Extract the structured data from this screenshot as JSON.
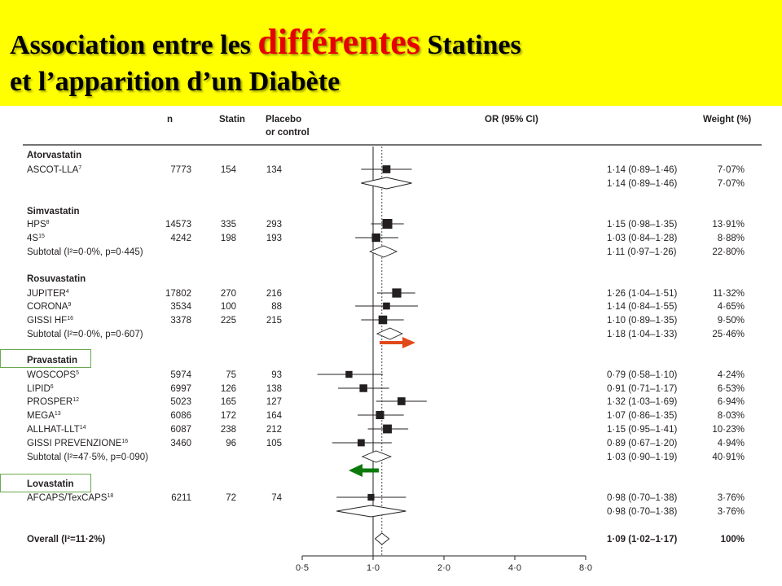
{
  "title": {
    "line1_pre": "Association entre les ",
    "line1_emph": "différentes",
    "line1_post": " Statines",
    "line2": "et l’apparition d’un Diabète"
  },
  "colors": {
    "title_background": "#ffff00",
    "title_emphasis": "#e60000",
    "right_arrow": "#e04a1a",
    "left_arrow": "#0b7a0b",
    "callout_box": "#6aa84f"
  },
  "chart_data": {
    "type": "forest",
    "x_scale": "log",
    "xlim": [
      0.5,
      8.0
    ],
    "x_ticks": [
      {
        "value": 0.5,
        "label": "0·5"
      },
      {
        "value": 1.0,
        "label": "1·0"
      },
      {
        "value": 2.0,
        "label": "2·0"
      },
      {
        "value": 4.0,
        "label": "4·0"
      },
      {
        "value": 8.0,
        "label": "8·0"
      }
    ],
    "reference_line": 1.0,
    "overall_line": 1.09,
    "headers": {
      "n": "n",
      "statin": "Statin",
      "placebo_1": "Placebo",
      "placebo_2": "or control",
      "or": "OR (95% CI)",
      "weight": "Weight (%)"
    },
    "groups": [
      {
        "name": "Atorvastatin",
        "studies": [
          {
            "label": "ASCOT-LLA",
            "ref": "7",
            "n": "7773",
            "statin": "154",
            "placebo": "134",
            "or": 1.14,
            "lo": 0.89,
            "hi": 1.46,
            "or_text": "1·14 (0·89–1·46)",
            "weight": 7.07,
            "weight_text": "7·07%"
          }
        ],
        "subtotal": {
          "label": "",
          "or": 1.14,
          "lo": 0.89,
          "hi": 1.46,
          "or_text": "1·14 (0·89–1·46)",
          "weight_text": "7·07%"
        }
      },
      {
        "name": "Simvastatin",
        "studies": [
          {
            "label": "HPS",
            "ref": "8",
            "n": "14573",
            "statin": "335",
            "placebo": "293",
            "or": 1.15,
            "lo": 0.98,
            "hi": 1.35,
            "or_text": "1·15 (0·98–1·35)",
            "weight": 13.91,
            "weight_text": "13·91%"
          },
          {
            "label": "4S",
            "ref": "15",
            "n": "4242",
            "statin": "198",
            "placebo": "193",
            "or": 1.03,
            "lo": 0.84,
            "hi": 1.28,
            "or_text": "1·03 (0·84–1·28)",
            "weight": 8.88,
            "weight_text": "8·88%"
          }
        ],
        "subtotal": {
          "label": "Subtotal (I²=0·0%, p=0·445)",
          "or": 1.11,
          "lo": 0.97,
          "hi": 1.26,
          "or_text": "1·11 (0·97–1·26)",
          "weight_text": "22·80%"
        }
      },
      {
        "name": "Rosuvastatin",
        "studies": [
          {
            "label": "JUPITER",
            "ref": "4",
            "n": "17802",
            "statin": "270",
            "placebo": "216",
            "or": 1.26,
            "lo": 1.04,
            "hi": 1.51,
            "or_text": "1·26 (1·04–1·51)",
            "weight": 11.32,
            "weight_text": "11·32%"
          },
          {
            "label": "CORONA",
            "ref": "9",
            "n": "3534",
            "statin": "100",
            "placebo": "88",
            "or": 1.14,
            "lo": 0.84,
            "hi": 1.55,
            "or_text": "1·14 (0·84–1·55)",
            "weight": 4.65,
            "weight_text": "4·65%"
          },
          {
            "label": "GISSI HF",
            "ref": "16",
            "n": "3378",
            "statin": "225",
            "placebo": "215",
            "or": 1.1,
            "lo": 0.89,
            "hi": 1.35,
            "or_text": "1·10 (0·89–1·35)",
            "weight": 9.5,
            "weight_text": "9·50%"
          }
        ],
        "subtotal": {
          "label": "Subtotal (I²=0·0%, p=0·607)",
          "or": 1.18,
          "lo": 1.04,
          "hi": 1.33,
          "or_text": "1·18 (1·04–1·33)",
          "weight_text": "25·46%"
        }
      },
      {
        "name": "Pravastatin",
        "studies": [
          {
            "label": "WOSCOPS",
            "ref": "5",
            "n": "5974",
            "statin": "75",
            "placebo": "93",
            "or": 0.79,
            "lo": 0.58,
            "hi": 1.1,
            "or_text": "0·79 (0·58–1·10)",
            "weight": 4.24,
            "weight_text": "4·24%"
          },
          {
            "label": "LIPID",
            "ref": "6",
            "n": "6997",
            "statin": "126",
            "placebo": "138",
            "or": 0.91,
            "lo": 0.71,
            "hi": 1.17,
            "or_text": "0·91 (0·71–1·17)",
            "weight": 6.53,
            "weight_text": "6·53%"
          },
          {
            "label": "PROSPER",
            "ref": "12",
            "n": "5023",
            "statin": "165",
            "placebo": "127",
            "or": 1.32,
            "lo": 1.03,
            "hi": 1.69,
            "or_text": "1·32 (1·03–1·69)",
            "weight": 6.94,
            "weight_text": "6·94%"
          },
          {
            "label": "MEGA",
            "ref": "13",
            "n": "6086",
            "statin": "172",
            "placebo": "164",
            "or": 1.07,
            "lo": 0.86,
            "hi": 1.35,
            "or_text": "1·07 (0·86–1·35)",
            "weight": 8.03,
            "weight_text": "8·03%"
          },
          {
            "label": "ALLHAT-LLT",
            "ref": "14",
            "n": "6087",
            "statin": "238",
            "placebo": "212",
            "or": 1.15,
            "lo": 0.95,
            "hi": 1.41,
            "or_text": "1·15 (0·95–1·41)",
            "weight": 10.23,
            "weight_text": "10·23%"
          },
          {
            "label": "GISSI PREVENZIONE",
            "ref": "16",
            "n": "3460",
            "statin": "96",
            "placebo": "105",
            "or": 0.89,
            "lo": 0.67,
            "hi": 1.2,
            "or_text": "0·89 (0·67–1·20)",
            "weight": 4.94,
            "weight_text": "4·94%"
          }
        ],
        "subtotal": {
          "label": "Subtotal (I²=47·5%, p=0·090)",
          "or": 1.03,
          "lo": 0.9,
          "hi": 1.19,
          "or_text": "1·03 (0·90–1·19)",
          "weight_text": "40·91%"
        }
      },
      {
        "name": "Lovastatin",
        "studies": [
          {
            "label": "AFCAPS/TexCAPS",
            "ref": "18",
            "n": "6211",
            "statin": "72",
            "placebo": "74",
            "or": 0.98,
            "lo": 0.7,
            "hi": 1.38,
            "or_text": "0·98 (0·70–1·38)",
            "weight": 3.76,
            "weight_text": "3·76%"
          }
        ],
        "subtotal": {
          "label": "",
          "or": 0.98,
          "lo": 0.7,
          "hi": 1.38,
          "or_text": "0·98 (0·70–1·38)",
          "weight_text": "3·76%"
        }
      }
    ],
    "overall": {
      "label": "Overall (I²=11·2%)",
      "or": 1.09,
      "lo": 1.02,
      "hi": 1.17,
      "or_text": "1·09 (1·02–1·17)",
      "weight_text": "100%"
    }
  }
}
